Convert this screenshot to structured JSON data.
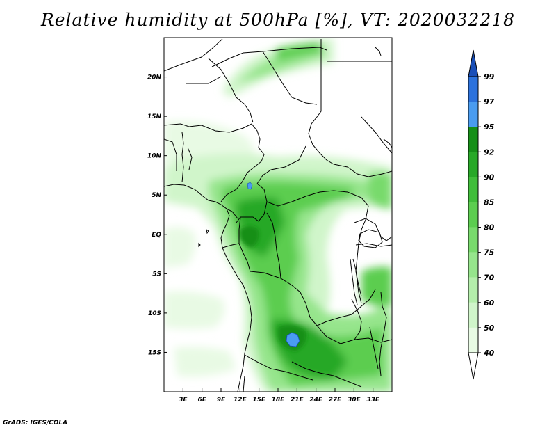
{
  "title": "Relative humidity at 500hPa [%], VT: 2020032218",
  "credit": "GrADS: IGES/COLA",
  "map": {
    "lon_range": [
      0,
      36
    ],
    "lat_range": [
      -20,
      25
    ],
    "lat_ticks": [
      {
        "value": 20,
        "label": "20N"
      },
      {
        "value": 15,
        "label": "15N"
      },
      {
        "value": 10,
        "label": "10N"
      },
      {
        "value": 5,
        "label": "5N"
      },
      {
        "value": 0,
        "label": "EQ"
      },
      {
        "value": -5,
        "label": "5S"
      },
      {
        "value": -10,
        "label": "10S"
      },
      {
        "value": -15,
        "label": "15S"
      }
    ],
    "lon_ticks": [
      {
        "value": 3,
        "label": "3E"
      },
      {
        "value": 6,
        "label": "6E"
      },
      {
        "value": 9,
        "label": "9E"
      },
      {
        "value": 12,
        "label": "12E"
      },
      {
        "value": 15,
        "label": "15E"
      },
      {
        "value": 18,
        "label": "18E"
      },
      {
        "value": 21,
        "label": "21E"
      },
      {
        "value": 24,
        "label": "24E"
      },
      {
        "value": 27,
        "label": "27E"
      },
      {
        "value": 30,
        "label": "30E"
      },
      {
        "value": 33,
        "label": "33E"
      }
    ]
  },
  "colorbar": {
    "levels": [
      "40",
      "50",
      "60",
      "70",
      "75",
      "80",
      "85",
      "90",
      "92",
      "95",
      "97",
      "99"
    ],
    "colors": [
      "#e8fae4",
      "#d0f5ca",
      "#b4eeab",
      "#96e58c",
      "#78da6c",
      "#5ccd50",
      "#40bd3a",
      "#28a828",
      "#168f18",
      "#4a9cf0",
      "#2c72dc",
      "#1a4fb8"
    ]
  }
}
